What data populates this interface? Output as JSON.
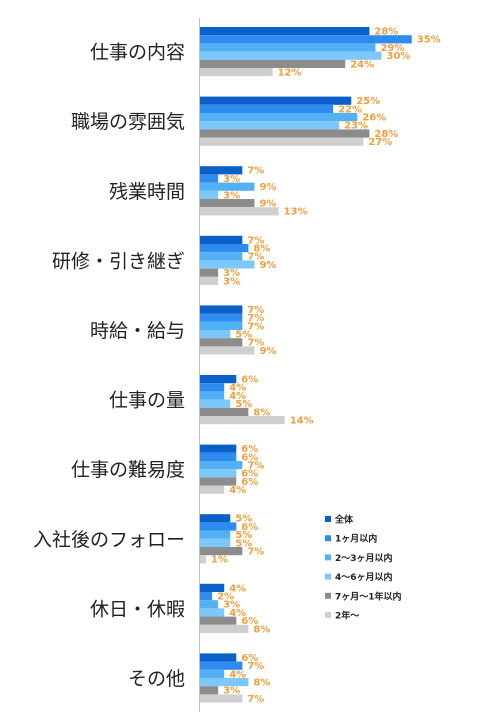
{
  "chart_data": {
    "type": "bar",
    "orientation": "horizontal",
    "categories": [
      "仕事の内容",
      "職場の雰囲気",
      "残業時間",
      "研修・引き継ぎ",
      "時給・給与",
      "仕事の量",
      "仕事の難易度",
      "入社後のフォロー",
      "休日・休暇",
      "その他"
    ],
    "series": [
      {
        "name": "全体",
        "values": [
          28,
          25,
          7,
          7,
          7,
          6,
          6,
          5,
          4,
          6
        ],
        "color": "#0a5fc8"
      },
      {
        "name": "1ヶ月以内",
        "values": [
          35,
          22,
          3,
          8,
          7,
          4,
          6,
          6,
          2,
          7
        ],
        "color": "#2e8cf0"
      },
      {
        "name": "2～3ヶ月以内",
        "values": [
          29,
          26,
          9,
          7,
          7,
          4,
          7,
          5,
          3,
          4
        ],
        "color": "#52b0f5"
      },
      {
        "name": "4～6ヶ月以内",
        "values": [
          30,
          23,
          3,
          9,
          5,
          5,
          6,
          5,
          4,
          8
        ],
        "color": "#7cc8fa"
      },
      {
        "name": "7ヶ月～1年以内",
        "values": [
          24,
          28,
          9,
          3,
          7,
          8,
          6,
          7,
          6,
          3
        ],
        "color": "#8c8c8c"
      },
      {
        "name": "2年～",
        "values": [
          12,
          27,
          13,
          3,
          9,
          14,
          4,
          1,
          8,
          7
        ],
        "color": "#cfcfcf"
      }
    ],
    "value_suffix": "%",
    "xlim": [
      0,
      35
    ],
    "legend_position": "bottom-right",
    "label_color": "#f0a03c",
    "axis_color": "#bfbfbf"
  }
}
